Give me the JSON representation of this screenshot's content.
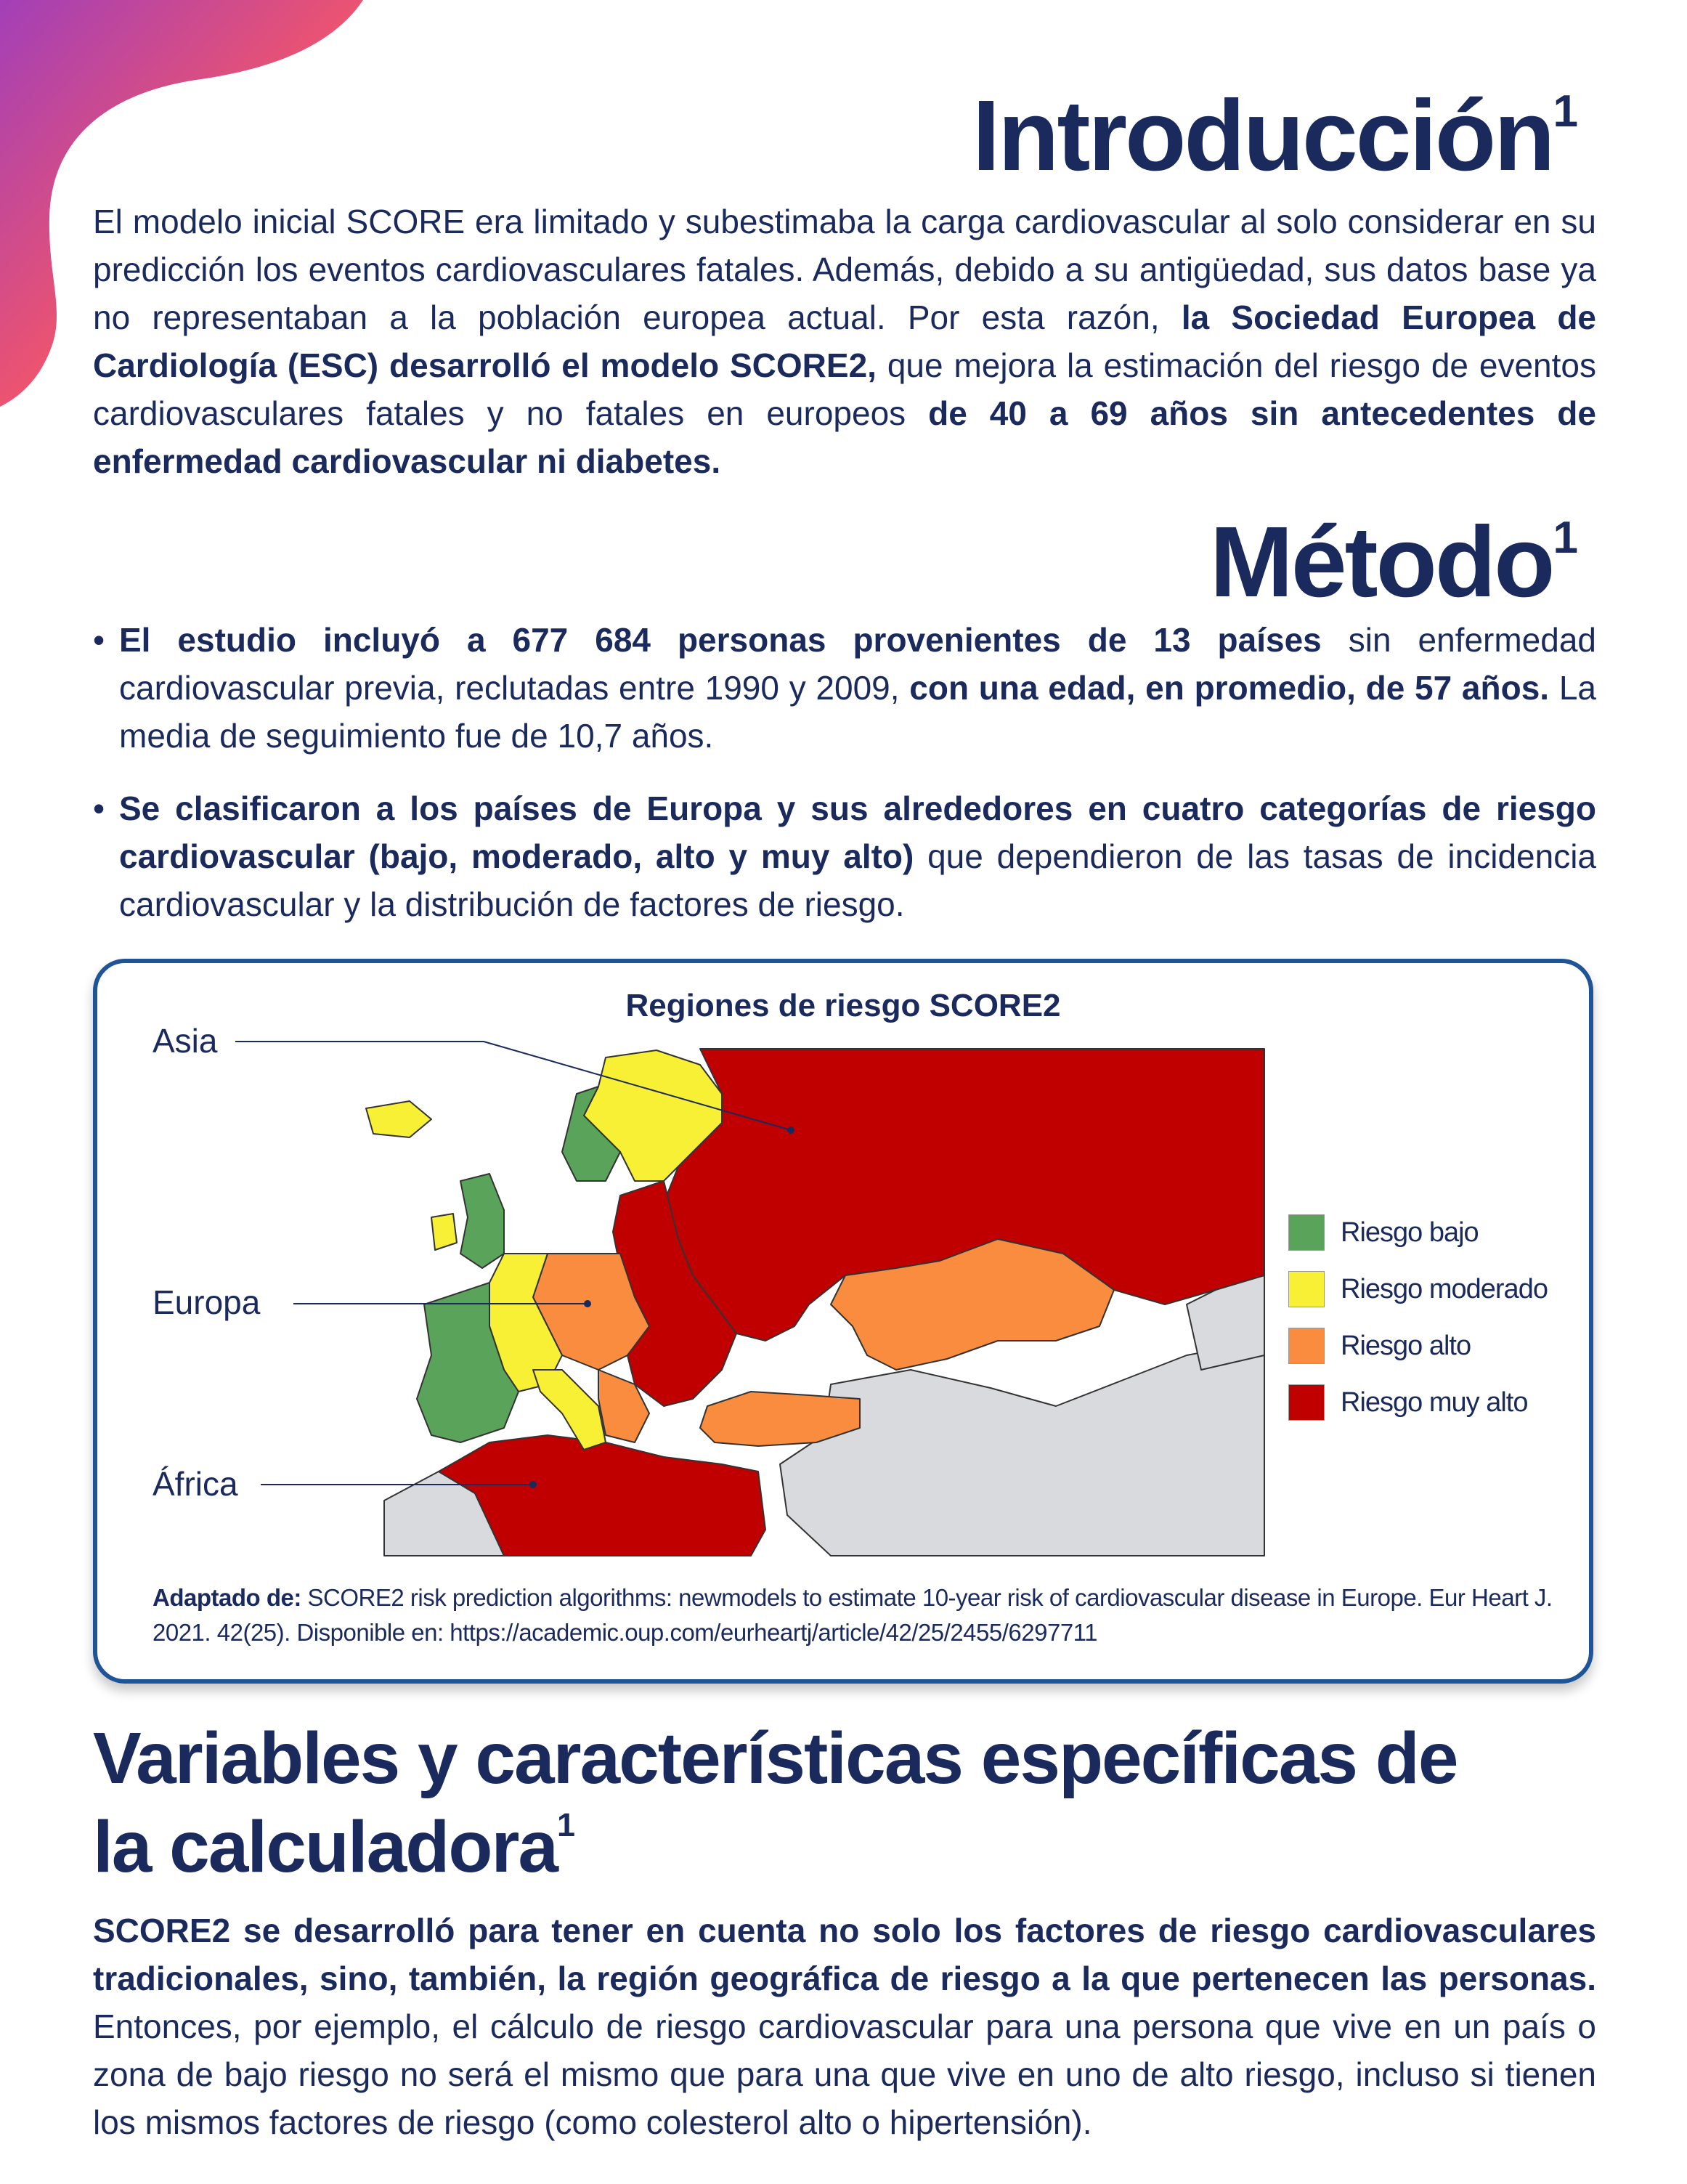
{
  "intro": {
    "title": "Introducción",
    "sup": "1",
    "p1": "El modelo inicial SCORE era limitado y subestimaba la carga cardiovascular al solo considerar en su predicción los eventos cardiovasculares fatales. Además, debido a su antigüedad, sus datos base ya no representaban a la población europea actual. Por esta razón, ",
    "b1": "la Sociedad Europea de Cardiología (ESC) desarrolló el modelo SCORE2,",
    "p2": " que mejora la estimación del riesgo de eventos cardiovasculares fatales y no fatales en europeos ",
    "b2": "de 40 a 69 años sin antecedentes de enfermedad cardiovascular ni diabetes."
  },
  "method": {
    "title": "Método",
    "sup": "1",
    "bullet1": {
      "b1": "El estudio incluyó a 677 684 personas provenientes de 13 países",
      "t1": " sin enfermedad cardiovascular previa, reclutadas entre 1990 y 2009, ",
      "b2": "con una edad, en promedio, de 57 años.",
      "t2": " La media de seguimiento fue de 10,7 años."
    },
    "bullet2": {
      "b1": "Se clasificaron a los países de Europa y sus alrededores en cuatro categorías de riesgo cardiovascular (bajo, moderado, alto y muy alto)",
      "t1": " que dependieron de las tasas de incidencia cardiovascular y la distribución de factores de riesgo."
    }
  },
  "map": {
    "title": "Regiones de riesgo SCORE2",
    "labels": {
      "asia": "Asia",
      "europa": "Europa",
      "africa": "África"
    },
    "legend": [
      {
        "label": "Riesgo bajo",
        "color": "#5aa35a"
      },
      {
        "label": "Riesgo moderado",
        "color": "#f7f035"
      },
      {
        "label": "Riesgo alto",
        "color": "#f98c3e"
      },
      {
        "label": "Riesgo muy alto",
        "color": "#c00000"
      }
    ],
    "colors": {
      "other": "#d9dadd",
      "border": "#333333"
    },
    "source_bold": "Adaptado de:",
    "source_text": " SCORE2 risk prediction algorithms: newmodels to estimate 10-year risk of cardiovascular disease in Europe. Eur Heart J. 2021. 42(25). Disponible en: https://academic.oup.com/eurheartj/article/42/25/2455/6297711"
  },
  "vars": {
    "title_line1": "Variables y características específicas de",
    "title_line2": "la calculadora",
    "sup": "1",
    "b1": "SCORE2 se desarrolló para tener en cuenta no solo los factores de riesgo cardiovasculares tradicionales, sino, también, la región geográfica de riesgo a la que pertenecen las personas.",
    "t1": " Entonces, por ejemplo, el cálculo de riesgo cardiovascular para una persona que vive en un país o zona de bajo riesgo no será el mismo que para una que vive en uno de alto riesgo, incluso si tienen los mismos factores de riesgo (como colesterol alto o hipertensión)."
  },
  "brand": {
    "gradient_from": "#a23fb8",
    "gradient_mid": "#f2556a",
    "gradient_to": "#f57b4f"
  }
}
